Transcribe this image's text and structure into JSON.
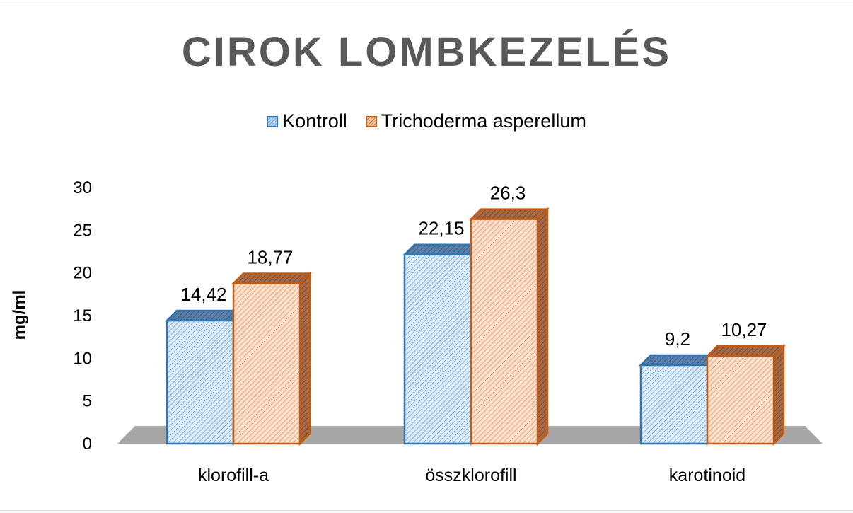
{
  "chart_data": {
    "type": "bar",
    "title": "CIROK LOMBKEZELÉS",
    "ylabel": "mg/ml",
    "xlabel": "",
    "ylim": [
      0,
      30
    ],
    "yticks": [
      0,
      5,
      10,
      15,
      20,
      25,
      30
    ],
    "categories": [
      "klorofill-a",
      "összklorofill",
      "karotinoid"
    ],
    "series": [
      {
        "name": "Kontroll",
        "values": [
          14.42,
          22.15,
          9.2
        ],
        "labels": [
          "14,42",
          "22,15",
          "9,2"
        ],
        "color": "#2e75b6",
        "fill": "#bdd7ee"
      },
      {
        "name": "Trichoderma asperellum",
        "values": [
          18.77,
          26.3,
          10.27
        ],
        "labels": [
          "18,77",
          "26,3",
          "10,27"
        ],
        "color": "#c55a11",
        "fill": "#f8cbad"
      }
    ],
    "grid": false,
    "legend_position": "top",
    "style": "3d-clustered-column"
  }
}
